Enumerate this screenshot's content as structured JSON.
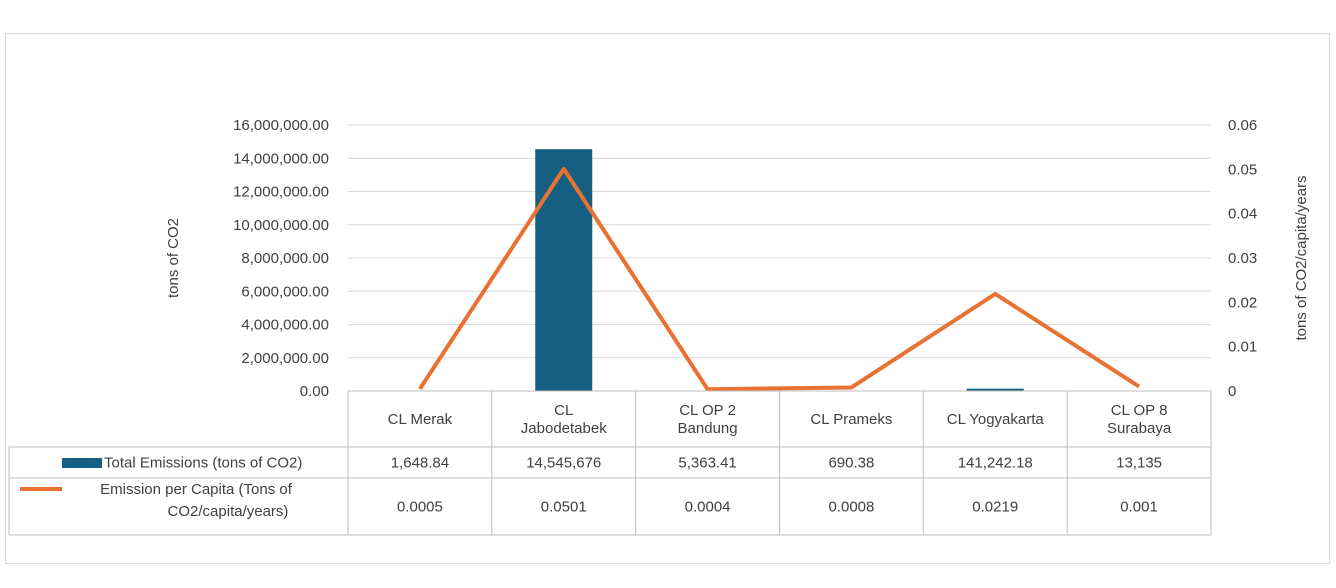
{
  "chart_data": {
    "type": "bar",
    "categories": [
      [
        "CL Merak"
      ],
      [
        "CL",
        "Jabodetabek"
      ],
      [
        "CL OP 2",
        "Bandung"
      ],
      [
        "CL Prameks"
      ],
      [
        "CL Yogyakarta"
      ],
      [
        "CL OP 8",
        "Surabaya"
      ]
    ],
    "series": [
      {
        "name": "Total Emissions (tons of CO2)",
        "type": "bar",
        "axis": "left",
        "color": "#156082",
        "values": [
          1648.84,
          14545676,
          5363.41,
          690.38,
          141242.18,
          13135
        ],
        "table_values": [
          "1,648.84",
          "14,545,676",
          "5,363.41",
          "690.38",
          "141,242.18",
          "13,135"
        ]
      },
      {
        "name_lines": [
          "Emission per Capita (Tons of",
          "CO2/capita/years)"
        ],
        "type": "line",
        "axis": "right",
        "color": "#e97132",
        "values": [
          0.0005,
          0.0501,
          0.0004,
          0.0008,
          0.0219,
          0.001
        ],
        "table_values": [
          "0.0005",
          "0.0501",
          "0.0004",
          "0.0008",
          "0.0219",
          "0.001"
        ]
      }
    ],
    "ylabel": "tons of CO2",
    "y2label": "tons of CO2/capita/years",
    "ylim": [
      0,
      16000000
    ],
    "y2lim": [
      0,
      0.06
    ],
    "yticks": [
      "0.00",
      "2,000,000.00",
      "4,000,000.00",
      "6,000,000.00",
      "8,000,000.00",
      "10,000,000.00",
      "12,000,000.00",
      "14,000,000.00",
      "16,000,000.00"
    ],
    "y2ticks": [
      "0",
      "0.01",
      "0.02",
      "0.03",
      "0.04",
      "0.05",
      "0.06"
    ],
    "grid": true,
    "legend": "data-table"
  }
}
